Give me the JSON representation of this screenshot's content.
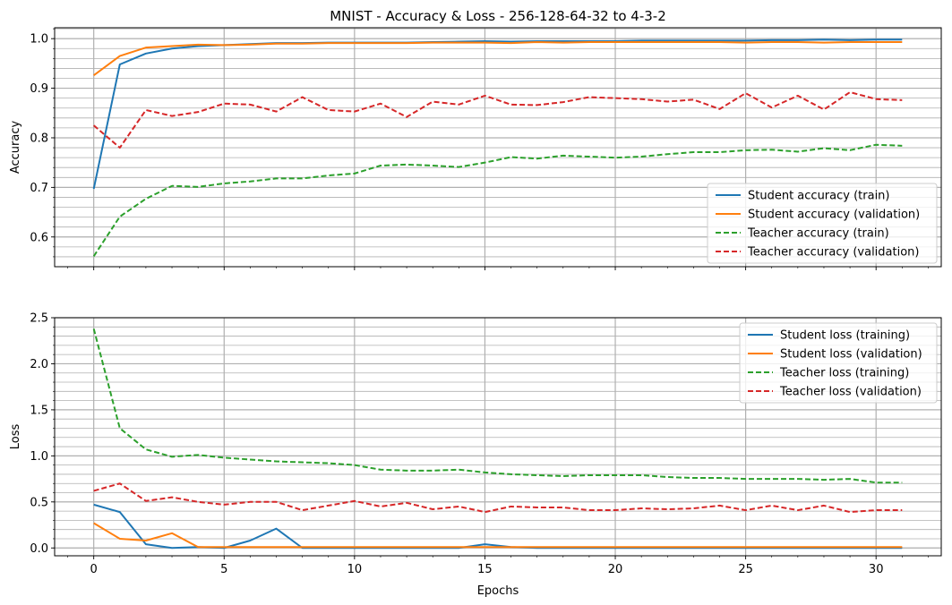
{
  "chart_data": [
    {
      "type": "line",
      "title": "MNIST - Accuracy & Loss - 256-128-64-32 to 4-3-2",
      "xlabel": "",
      "ylabel": "Accuracy",
      "xlim": [
        -1.5,
        32.5
      ],
      "ylim": [
        0.54,
        1.022
      ],
      "x_ticks": [
        0,
        5,
        10,
        15,
        20,
        25,
        30
      ],
      "y_ticks": [
        0.6,
        0.7,
        0.8,
        0.9,
        1.0
      ],
      "grid": "on",
      "legend_position": "center-right",
      "x": [
        0,
        1,
        2,
        3,
        4,
        5,
        6,
        7,
        8,
        9,
        10,
        11,
        12,
        13,
        14,
        15,
        16,
        17,
        18,
        19,
        20,
        21,
        22,
        23,
        24,
        25,
        26,
        27,
        28,
        29,
        30,
        31
      ],
      "series": [
        {
          "name": "Student accuracy (train)",
          "color": "#1f77b4",
          "style": "solid",
          "values": [
            0.697,
            0.948,
            0.97,
            0.98,
            0.985,
            0.987,
            0.989,
            0.991,
            0.991,
            0.992,
            0.992,
            0.992,
            0.992,
            0.993,
            0.994,
            0.995,
            0.994,
            0.995,
            0.995,
            0.995,
            0.995,
            0.996,
            0.996,
            0.996,
            0.996,
            0.996,
            0.997,
            0.997,
            0.998,
            0.997,
            0.998,
            0.998
          ]
        },
        {
          "name": "Student accuracy (validation)",
          "color": "#ff7f0e",
          "style": "solid",
          "values": [
            0.926,
            0.965,
            0.982,
            0.985,
            0.988,
            0.987,
            0.988,
            0.99,
            0.99,
            0.991,
            0.991,
            0.991,
            0.991,
            0.992,
            0.992,
            0.992,
            0.991,
            0.993,
            0.992,
            0.993,
            0.993,
            0.993,
            0.993,
            0.993,
            0.993,
            0.992,
            0.993,
            0.993,
            0.992,
            0.993,
            0.993,
            0.993
          ]
        },
        {
          "name": "Teacher accuracy (train)",
          "color": "#2ca02c",
          "style": "dashed",
          "values": [
            0.561,
            0.641,
            0.677,
            0.703,
            0.701,
            0.708,
            0.712,
            0.718,
            0.718,
            0.724,
            0.728,
            0.744,
            0.746,
            0.744,
            0.741,
            0.75,
            0.761,
            0.758,
            0.764,
            0.762,
            0.76,
            0.762,
            0.767,
            0.771,
            0.771,
            0.775,
            0.776,
            0.772,
            0.779,
            0.775,
            0.786,
            0.784
          ]
        },
        {
          "name": "Teacher accuracy (validation)",
          "color": "#d62728",
          "style": "dashed",
          "values": [
            0.825,
            0.78,
            0.856,
            0.844,
            0.852,
            0.869,
            0.867,
            0.853,
            0.882,
            0.856,
            0.853,
            0.869,
            0.842,
            0.873,
            0.867,
            0.885,
            0.867,
            0.866,
            0.872,
            0.882,
            0.88,
            0.878,
            0.873,
            0.877,
            0.858,
            0.89,
            0.861,
            0.885,
            0.857,
            0.892,
            0.878,
            0.876
          ]
        }
      ]
    },
    {
      "type": "line",
      "title": "",
      "xlabel": "Epochs",
      "ylabel": "Loss",
      "xlim": [
        -1.5,
        32.5
      ],
      "ylim": [
        -0.085,
        2.5
      ],
      "x_ticks": [
        0,
        5,
        10,
        15,
        20,
        25,
        30
      ],
      "x_tick_labels": [
        "0",
        "5",
        "10",
        "15",
        "20",
        "25",
        "30"
      ],
      "y_ticks": [
        0.0,
        0.5,
        1.0,
        1.5,
        2.0,
        2.5
      ],
      "grid": "on",
      "legend_position": "top-right",
      "x": [
        0,
        1,
        2,
        3,
        4,
        5,
        6,
        7,
        8,
        9,
        10,
        11,
        12,
        13,
        14,
        15,
        16,
        17,
        18,
        19,
        20,
        21,
        22,
        23,
        24,
        25,
        26,
        27,
        28,
        29,
        30,
        31
      ],
      "series": [
        {
          "name": "Student loss (training)",
          "color": "#1f77b4",
          "style": "solid",
          "values": [
            0.47,
            0.39,
            0.04,
            0.0,
            0.01,
            0.0,
            0.08,
            0.21,
            0.0,
            0.0,
            0.0,
            0.0,
            0.0,
            0.0,
            0.0,
            0.04,
            0.01,
            0.0,
            0.0,
            0.0,
            0.0,
            0.0,
            0.0,
            0.0,
            0.0,
            0.0,
            0.0,
            0.0,
            0.0,
            0.0,
            0.0,
            0.0
          ]
        },
        {
          "name": "Student loss (validation)",
          "color": "#ff7f0e",
          "style": "solid",
          "values": [
            0.27,
            0.1,
            0.08,
            0.16,
            0.01,
            0.01,
            0.01,
            0.01,
            0.01,
            0.01,
            0.01,
            0.01,
            0.01,
            0.01,
            0.01,
            0.01,
            0.01,
            0.01,
            0.01,
            0.01,
            0.01,
            0.01,
            0.01,
            0.01,
            0.01,
            0.01,
            0.01,
            0.01,
            0.01,
            0.01,
            0.01,
            0.01
          ]
        },
        {
          "name": "Teacher loss (training)",
          "color": "#2ca02c",
          "style": "dashed",
          "values": [
            2.38,
            1.3,
            1.07,
            0.99,
            1.01,
            0.98,
            0.96,
            0.94,
            0.93,
            0.92,
            0.9,
            0.85,
            0.84,
            0.84,
            0.85,
            0.82,
            0.8,
            0.79,
            0.78,
            0.79,
            0.79,
            0.79,
            0.77,
            0.76,
            0.76,
            0.75,
            0.75,
            0.75,
            0.74,
            0.75,
            0.71,
            0.71
          ]
        },
        {
          "name": "Teacher loss (validation)",
          "color": "#d62728",
          "style": "dashed",
          "values": [
            0.62,
            0.7,
            0.51,
            0.55,
            0.5,
            0.47,
            0.5,
            0.5,
            0.41,
            0.46,
            0.51,
            0.45,
            0.49,
            0.42,
            0.45,
            0.39,
            0.45,
            0.44,
            0.44,
            0.41,
            0.41,
            0.43,
            0.42,
            0.43,
            0.46,
            0.41,
            0.46,
            0.41,
            0.46,
            0.39,
            0.41,
            0.41
          ]
        }
      ]
    }
  ]
}
